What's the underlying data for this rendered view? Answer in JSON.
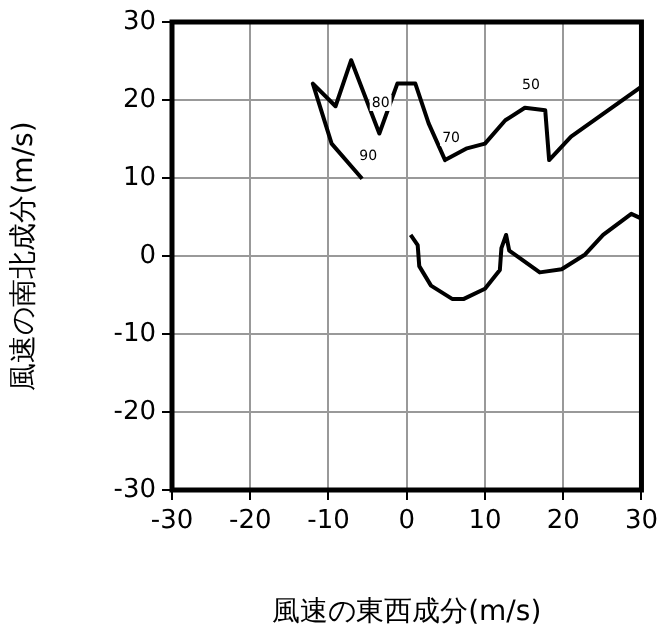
{
  "chart_data": {
    "type": "line",
    "xlabel": "風速の東西成分(m/s)",
    "ylabel": "風速の南北成分(m/s)",
    "xlim": [
      -30,
      30
    ],
    "xticks": [
      -30,
      -20,
      -10,
      0,
      10,
      20,
      30
    ],
    "ylim": [
      -30,
      30
    ],
    "yticks": [
      -30,
      -20,
      -10,
      0,
      10,
      20,
      30
    ],
    "grid": true,
    "marker": "none",
    "series": [
      {
        "color": "#000000",
        "x": [
          -5.7,
          -9.6,
          -12,
          -9.1,
          -7.1,
          -3.5,
          -1.2,
          1.1,
          2.8,
          4.9,
          7.7,
          10,
          12.6,
          15.1,
          17.7,
          18.2,
          21,
          30
        ],
        "values": [
          9.9,
          14.4,
          22.1,
          19.2,
          25.1,
          15.7,
          22.1,
          22.1,
          17,
          12.3,
          13.8,
          14.4,
          17.4,
          19,
          18.7,
          12.3,
          15.3,
          21.7
        ]
      },
      {
        "color": "#000000",
        "x": [
          0.5,
          1.4,
          1.6,
          3.1,
          5.8,
          7.3,
          10,
          11.9,
          12.1,
          12.7,
          13.1,
          17,
          19.8,
          22.8,
          25.1,
          28.7,
          30
        ],
        "values": [
          2.7,
          1.4,
          -1.3,
          -3.8,
          -5.5,
          -5.5,
          -4.2,
          -1.8,
          1,
          2.7,
          0.7,
          -2.1,
          -1.7,
          0.2,
          2.7,
          5.4,
          4.8
        ]
      }
    ],
    "annotations": [
      {
        "text": "50",
        "x": 15.1,
        "y": 19
      },
      {
        "text": "70",
        "x": 4.9,
        "y": 12.3
      },
      {
        "text": "80",
        "x": -4.1,
        "y": 16.8
      },
      {
        "text": "90",
        "x": -5.7,
        "y": 9.9
      }
    ]
  }
}
